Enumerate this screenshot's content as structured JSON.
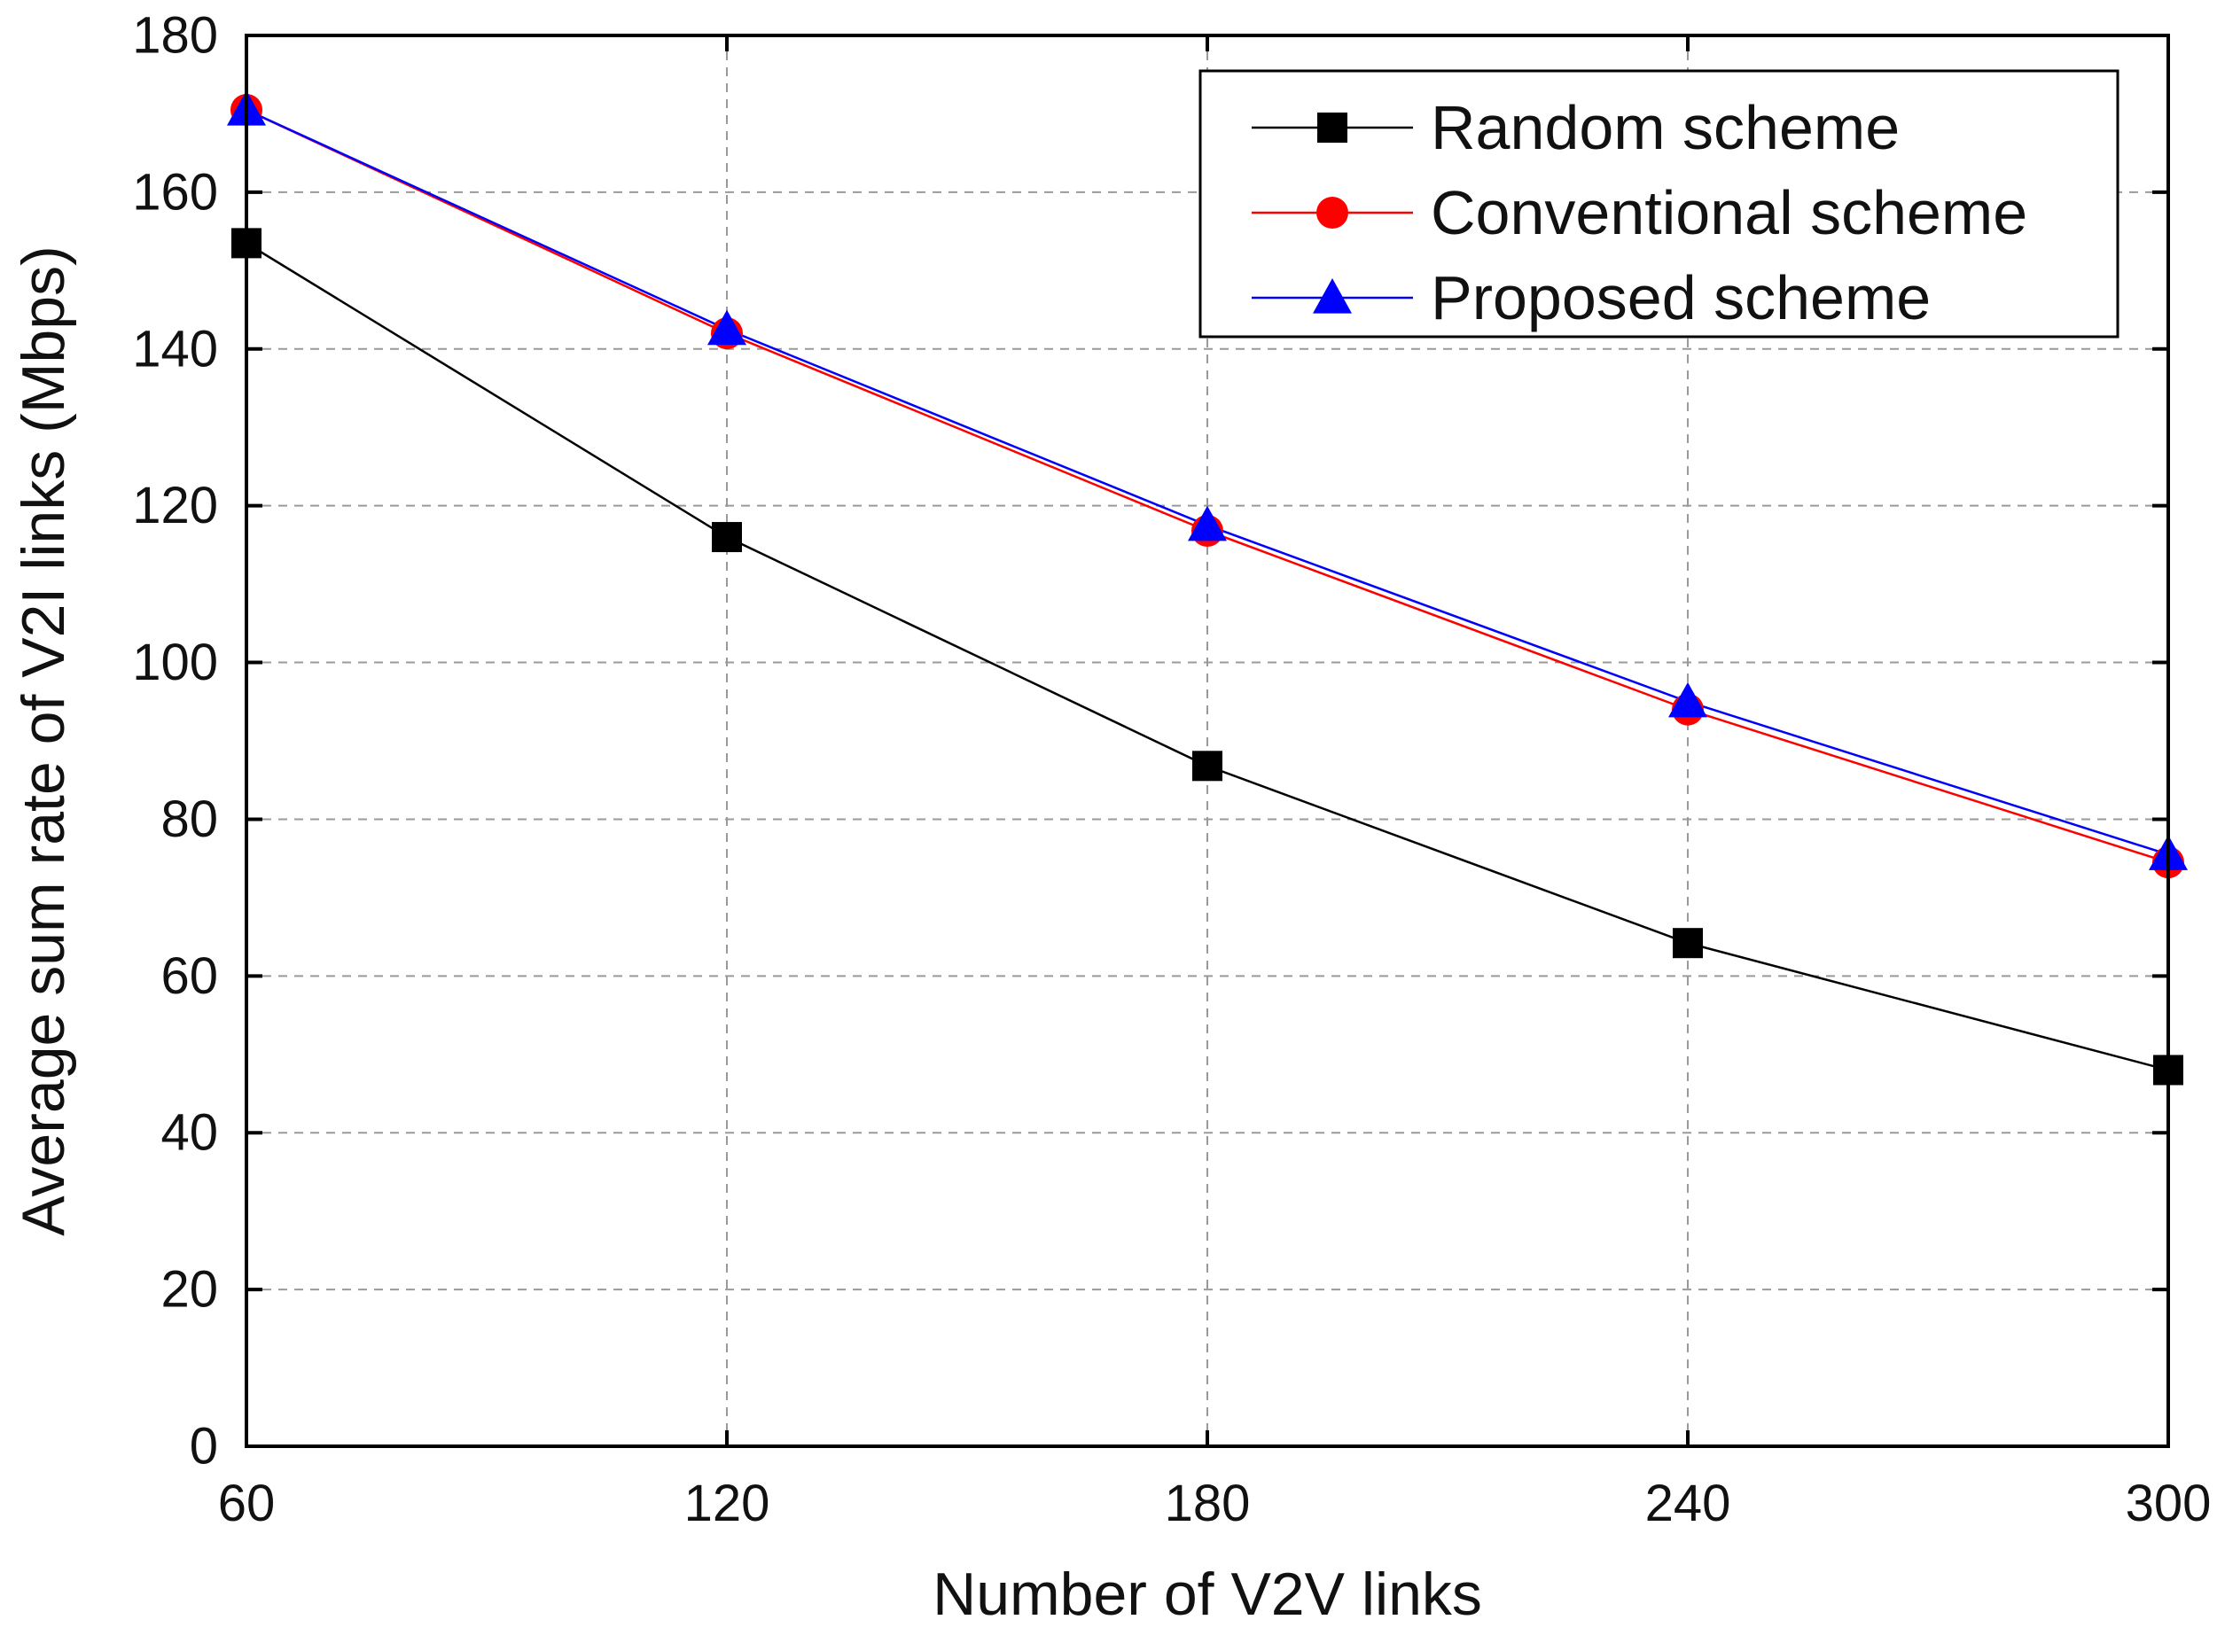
{
  "chart_data": {
    "type": "line",
    "title": "",
    "xlabel": "Number of V2V links",
    "ylabel": "Average sum rate of V2I links (Mbps)",
    "x": [
      60,
      120,
      180,
      240,
      300
    ],
    "xlim": [
      60,
      300
    ],
    "ylim": [
      0,
      180
    ],
    "xticks": [
      60,
      120,
      180,
      240,
      300
    ],
    "yticks": [
      0,
      20,
      40,
      60,
      80,
      100,
      120,
      140,
      160,
      180
    ],
    "grid": true,
    "legend_position": "top-right",
    "series": [
      {
        "name": "Random scheme",
        "color": "#000000",
        "marker": "square",
        "values": [
          153.5,
          116,
          86.8,
          64.2,
          48
        ]
      },
      {
        "name": "Conventional scheme",
        "color": "#ff0000",
        "marker": "circle",
        "values": [
          170.5,
          142,
          116.8,
          94,
          74.5
        ]
      },
      {
        "name": "Proposed scheme",
        "color": "#0000ff",
        "marker": "triangle",
        "values": [
          170.5,
          142.5,
          117.5,
          95,
          75.5
        ]
      }
    ]
  }
}
